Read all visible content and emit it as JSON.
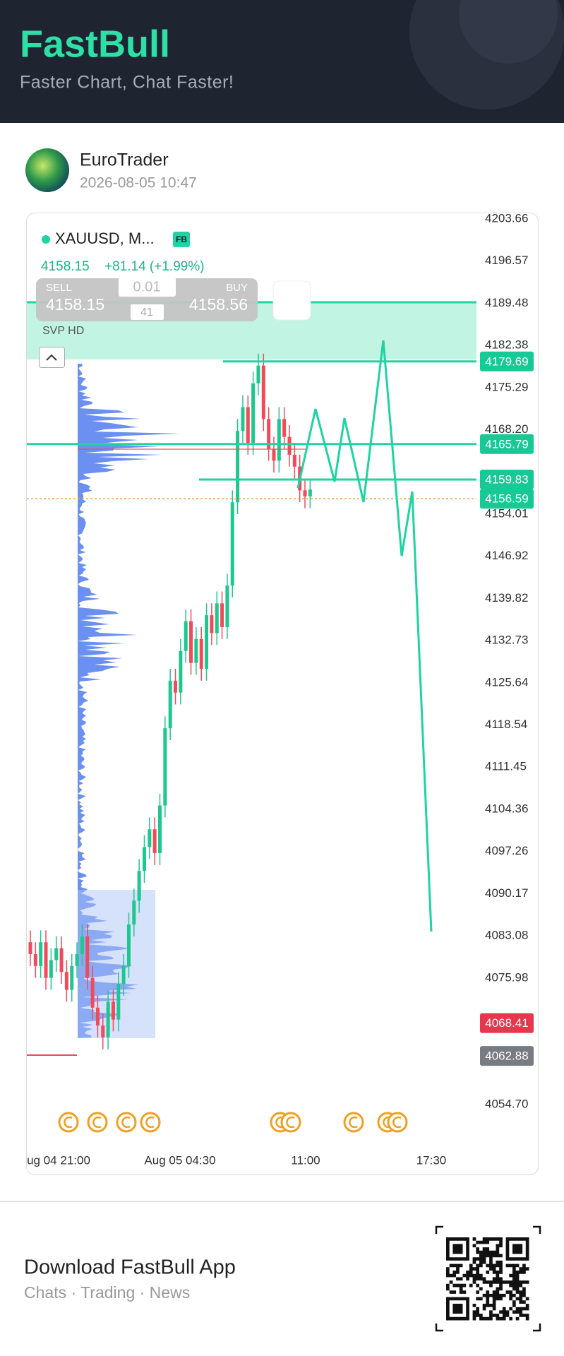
{
  "header": {
    "brand": "FastBull",
    "tagline": "Faster Chart, Chat Faster!"
  },
  "post": {
    "author": "EuroTrader",
    "timestamp": "2026-08-05 10:47"
  },
  "chart": {
    "symbol": "XAUUSD, M...",
    "badge": "FB",
    "last": "4158.15",
    "change": "+81.14 (+1.99%)",
    "sell_label": "SELL",
    "sell_price": "4158.15",
    "buy_label": "BUY",
    "buy_price": "4158.56",
    "lot": "0.01",
    "spread": "41",
    "indicator": "SVP HD",
    "yticks": [
      4203.66,
      4196.57,
      4189.48,
      4182.38,
      4175.29,
      {
        "value": 4168.2,
        "label": "4168.20"
      },
      4154.01,
      4146.92,
      4139.82,
      4132.73,
      4125.64,
      4118.54,
      4111.45,
      4104.36,
      4097.26,
      4090.17,
      4083.08,
      4075.98,
      {
        "value": 4054.7,
        "label": "4054.70"
      }
    ],
    "price_tags": [
      {
        "value": 4179.69,
        "color": "#17c995"
      },
      {
        "value": 4165.79,
        "color": "#17c995"
      },
      {
        "value": 4159.83,
        "color": "#17c995"
      },
      {
        "value": 4156.59,
        "color": "#17c995"
      },
      {
        "value": 4068.41,
        "color": "#e5384d"
      },
      {
        "value": 4062.88,
        "color": "#777b82"
      }
    ],
    "xticks": [
      "ug 04 21:00",
      "Aug 05 04:30",
      "11:00",
      "17:30"
    ],
    "up_color": "#1fc790",
    "down_color": "#ef4b5a",
    "candles": {
      "open": [
        4082,
        4080,
        4078,
        4082,
        4076,
        4079,
        4081,
        4077,
        4074,
        4078,
        4080,
        4083,
        4076,
        4071,
        4068,
        4066,
        4072,
        4069,
        4075,
        4078,
        4085,
        4089,
        4094,
        4098,
        4101,
        4097,
        4105,
        4118,
        4126,
        4124,
        4131,
        4136,
        4129,
        4133,
        4128,
        4137,
        4134,
        4139,
        4135,
        4142,
        4156,
        4168,
        4172,
        4166,
        4176,
        4179,
        4170,
        4165,
        4163,
        4170,
        4167,
        4164,
        4162,
        4158,
        4157
      ],
      "high": [
        4084,
        4082,
        4084,
        4084,
        4081,
        4083,
        4083,
        4079,
        4080,
        4082,
        4085,
        4085,
        4078,
        4073,
        4070,
        4074,
        4074,
        4077,
        4080,
        4087,
        4091,
        4096,
        4100,
        4103,
        4103,
        4107,
        4120,
        4128,
        4128,
        4133,
        4138,
        4138,
        4135,
        4135,
        4139,
        4139,
        4141,
        4141,
        4144,
        4158,
        4170,
        4174,
        4174,
        4178,
        4181,
        4181,
        4172,
        4167,
        4172,
        4172,
        4169,
        4166,
        4164,
        4160,
        4160
      ],
      "low": [
        4078,
        4076,
        4076,
        4074,
        4074,
        4077,
        4075,
        4072,
        4072,
        4076,
        4078,
        4074,
        4069,
        4066,
        4064,
        4064,
        4067,
        4067,
        4073,
        4076,
        4083,
        4087,
        4092,
        4096,
        4095,
        4095,
        4103,
        4116,
        4122,
        4122,
        4129,
        4127,
        4127,
        4126,
        4126,
        4132,
        4132,
        4133,
        4133,
        4140,
        4154,
        4166,
        4164,
        4164,
        4174,
        4168,
        4163,
        4161,
        4161,
        4165,
        4162,
        4160,
        4156,
        4155,
        4155
      ],
      "close": [
        4080,
        4078,
        4082,
        4076,
        4079,
        4081,
        4077,
        4074,
        4078,
        4080,
        4083,
        4076,
        4071,
        4068,
        4066,
        4072,
        4069,
        4075,
        4078,
        4085,
        4089,
        4094,
        4098,
        4101,
        4097,
        4105,
        4118,
        4126,
        4124,
        4131,
        4136,
        4129,
        4133,
        4128,
        4137,
        4134,
        4139,
        4135,
        4142,
        4156,
        4168,
        4172,
        4166,
        4176,
        4179,
        4170,
        4165,
        4163,
        4170,
        4167,
        4164,
        4162,
        4158,
        4157,
        4158.15
      ]
    }
  },
  "footer": {
    "cta": "Download FastBull App",
    "sub": "Chats · Trading · News"
  }
}
